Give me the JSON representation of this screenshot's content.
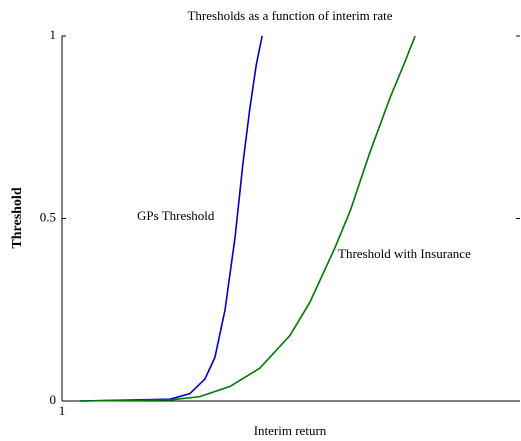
{
  "chart_data": {
    "type": "line",
    "title": "Thresholds as a function of interim rate",
    "x_label": "Interim return",
    "y_label": "Threshold",
    "xlim": [
      1,
      2
    ],
    "xticks": [
      1
    ],
    "ylim": [
      0,
      1
    ],
    "yticks": [
      0,
      0.5,
      1
    ],
    "series": [
      {
        "name": "GPs Threshold",
        "color": "#0000cc",
        "x": [
          1.039,
          1.236,
          1.279,
          1.312,
          1.334,
          1.356,
          1.378,
          1.395,
          1.41,
          1.424,
          1.437
        ],
        "values": [
          0,
          0.005,
          0.02,
          0.06,
          0.12,
          0.25,
          0.45,
          0.65,
          0.8,
          0.92,
          1
        ]
      },
      {
        "name": "Threshold with Insurance",
        "color": "#007700",
        "x": [
          1.039,
          1.236,
          1.301,
          1.367,
          1.432,
          1.498,
          1.541,
          1.596,
          1.629,
          1.672,
          1.716,
          1.749,
          1.771
        ],
        "values": [
          0,
          0.003,
          0.012,
          0.04,
          0.09,
          0.18,
          0.27,
          0.42,
          0.52,
          0.68,
          0.83,
          0.93,
          1
        ]
      }
    ]
  }
}
